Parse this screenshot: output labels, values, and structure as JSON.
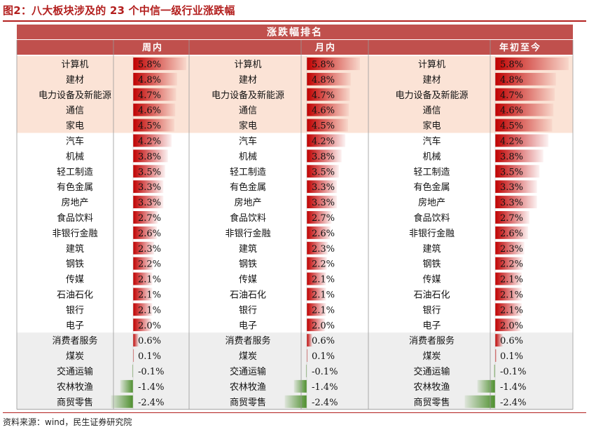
{
  "figure_title": "图2：八大板块涉及的 23 个中信一级行业涨跌幅",
  "source_note": "资料来源：wind，民生证券研究院",
  "colors": {
    "header_fill": "#c0504d",
    "header_text": "#ffffff",
    "top5_band": "#fbe3d6",
    "bottom5_band": "#eeeeee",
    "positive_bar": "#c00000",
    "negative_bar": "#4e8f2e",
    "grid": "#999999"
  },
  "chart_data": {
    "type": "table",
    "title": "涨跌幅排名",
    "columns": [
      {
        "name": "周内",
        "rows": [
          {
            "industry": "计算机",
            "value": 5.8,
            "label": "5.8%"
          },
          {
            "industry": "建材",
            "value": 4.8,
            "label": "4.8%"
          },
          {
            "industry": "电力设备及新能源",
            "value": 4.7,
            "label": "4.7%"
          },
          {
            "industry": "通信",
            "value": 4.6,
            "label": "4.6%"
          },
          {
            "industry": "家电",
            "value": 4.5,
            "label": "4.5%"
          },
          {
            "industry": "汽车",
            "value": 4.2,
            "label": "4.2%"
          },
          {
            "industry": "机械",
            "value": 3.8,
            "label": "3.8%"
          },
          {
            "industry": "轻工制造",
            "value": 3.5,
            "label": "3.5%"
          },
          {
            "industry": "有色金属",
            "value": 3.3,
            "label": "3.3%"
          },
          {
            "industry": "房地产",
            "value": 3.3,
            "label": "3.3%"
          },
          {
            "industry": "食品饮料",
            "value": 2.7,
            "label": "2.7%"
          },
          {
            "industry": "非银行金融",
            "value": 2.6,
            "label": "2.6%"
          },
          {
            "industry": "建筑",
            "value": 2.3,
            "label": "2.3%"
          },
          {
            "industry": "钢铁",
            "value": 2.2,
            "label": "2.2%"
          },
          {
            "industry": "传媒",
            "value": 2.1,
            "label": "2.1%"
          },
          {
            "industry": "石油石化",
            "value": 2.1,
            "label": "2.1%"
          },
          {
            "industry": "银行",
            "value": 2.1,
            "label": "2.1%"
          },
          {
            "industry": "电子",
            "value": 2.0,
            "label": "2.0%"
          },
          {
            "industry": "消费者服务",
            "value": 0.6,
            "label": "0.6%"
          },
          {
            "industry": "煤炭",
            "value": 0.1,
            "label": "0.1%"
          },
          {
            "industry": "交通运输",
            "value": -0.1,
            "label": "-0.1%"
          },
          {
            "industry": "农林牧渔",
            "value": -1.4,
            "label": "-1.4%"
          },
          {
            "industry": "商贸零售",
            "value": -2.4,
            "label": "-2.4%"
          }
        ]
      },
      {
        "name": "月内",
        "rows": [
          {
            "industry": "计算机",
            "value": 5.8,
            "label": "5.8%"
          },
          {
            "industry": "建材",
            "value": 4.8,
            "label": "4.8%"
          },
          {
            "industry": "电力设备及新能源",
            "value": 4.7,
            "label": "4.7%"
          },
          {
            "industry": "通信",
            "value": 4.6,
            "label": "4.6%"
          },
          {
            "industry": "家电",
            "value": 4.5,
            "label": "4.5%"
          },
          {
            "industry": "汽车",
            "value": 4.2,
            "label": "4.2%"
          },
          {
            "industry": "机械",
            "value": 3.8,
            "label": "3.8%"
          },
          {
            "industry": "轻工制造",
            "value": 3.5,
            "label": "3.5%"
          },
          {
            "industry": "有色金属",
            "value": 3.3,
            "label": "3.3%"
          },
          {
            "industry": "房地产",
            "value": 3.3,
            "label": "3.3%"
          },
          {
            "industry": "食品饮料",
            "value": 2.7,
            "label": "2.7%"
          },
          {
            "industry": "非银行金融",
            "value": 2.6,
            "label": "2.6%"
          },
          {
            "industry": "建筑",
            "value": 2.3,
            "label": "2.3%"
          },
          {
            "industry": "钢铁",
            "value": 2.2,
            "label": "2.2%"
          },
          {
            "industry": "传媒",
            "value": 2.1,
            "label": "2.1%"
          },
          {
            "industry": "石油石化",
            "value": 2.1,
            "label": "2.1%"
          },
          {
            "industry": "银行",
            "value": 2.1,
            "label": "2.1%"
          },
          {
            "industry": "电子",
            "value": 2.0,
            "label": "2.0%"
          },
          {
            "industry": "消费者服务",
            "value": 0.6,
            "label": "0.6%"
          },
          {
            "industry": "煤炭",
            "value": 0.1,
            "label": "0.1%"
          },
          {
            "industry": "交通运输",
            "value": -0.1,
            "label": "-0.1%"
          },
          {
            "industry": "农林牧渔",
            "value": -1.4,
            "label": "-1.4%"
          },
          {
            "industry": "商贸零售",
            "value": -2.4,
            "label": "-2.4%"
          }
        ]
      },
      {
        "name": "年初至今",
        "rows": [
          {
            "industry": "计算机",
            "value": 5.8,
            "label": "5.8%"
          },
          {
            "industry": "建材",
            "value": 4.8,
            "label": "4.8%"
          },
          {
            "industry": "电力设备及新能源",
            "value": 4.7,
            "label": "4.7%"
          },
          {
            "industry": "通信",
            "value": 4.6,
            "label": "4.6%"
          },
          {
            "industry": "家电",
            "value": 4.5,
            "label": "4.5%"
          },
          {
            "industry": "汽车",
            "value": 4.2,
            "label": "4.2%"
          },
          {
            "industry": "机械",
            "value": 3.8,
            "label": "3.8%"
          },
          {
            "industry": "轻工制造",
            "value": 3.5,
            "label": "3.5%"
          },
          {
            "industry": "有色金属",
            "value": 3.3,
            "label": "3.3%"
          },
          {
            "industry": "房地产",
            "value": 3.3,
            "label": "3.3%"
          },
          {
            "industry": "食品饮料",
            "value": 2.7,
            "label": "2.7%"
          },
          {
            "industry": "非银行金融",
            "value": 2.6,
            "label": "2.6%"
          },
          {
            "industry": "建筑",
            "value": 2.3,
            "label": "2.3%"
          },
          {
            "industry": "钢铁",
            "value": 2.2,
            "label": "2.2%"
          },
          {
            "industry": "传媒",
            "value": 2.1,
            "label": "2.1%"
          },
          {
            "industry": "石油石化",
            "value": 2.1,
            "label": "2.1%"
          },
          {
            "industry": "银行",
            "value": 2.1,
            "label": "2.1%"
          },
          {
            "industry": "电子",
            "value": 2.0,
            "label": "2.0%"
          },
          {
            "industry": "消费者服务",
            "value": 0.6,
            "label": "0.6%"
          },
          {
            "industry": "煤炭",
            "value": 0.1,
            "label": "0.1%"
          },
          {
            "industry": "交通运输",
            "value": -0.1,
            "label": "-0.1%"
          },
          {
            "industry": "农林牧渔",
            "value": -1.4,
            "label": "-1.4%"
          },
          {
            "industry": "商贸零售",
            "value": -2.4,
            "label": "-2.4%"
          }
        ]
      }
    ],
    "highlight_top_rows": 5,
    "highlight_bottom_rows": 5
  }
}
